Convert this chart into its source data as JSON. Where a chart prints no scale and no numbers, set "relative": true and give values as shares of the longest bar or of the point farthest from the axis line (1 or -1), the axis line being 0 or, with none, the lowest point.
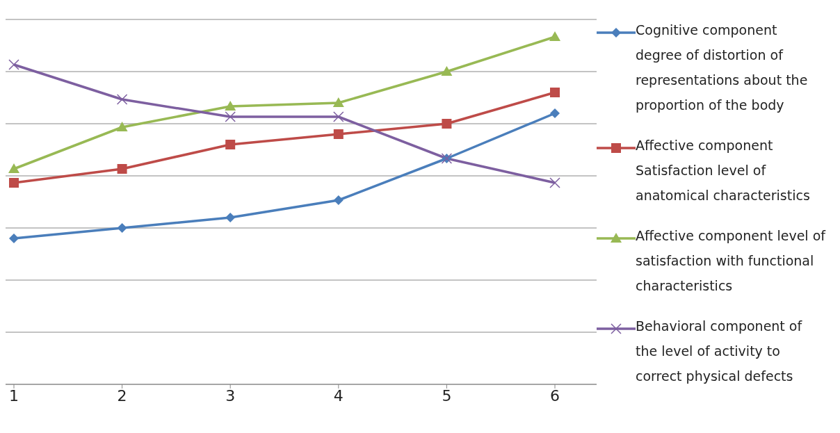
{
  "chart_data": {
    "type": "line",
    "relative": true,
    "categories": [
      "1",
      "2",
      "3",
      "4",
      "5",
      "6"
    ],
    "series": [
      {
        "name": "Cognitive component degree of distortion of representations about the proportion of the body",
        "color": "#4a7ebb",
        "marker": "diamond",
        "values": [
          0.42,
          0.45,
          0.48,
          0.53,
          0.65,
          0.78
        ]
      },
      {
        "name": "Affective component Satisfaction level of anatomical characteristics",
        "color": "#be4b48",
        "marker": "square",
        "values": [
          0.58,
          0.62,
          0.69,
          0.72,
          0.75,
          0.84
        ]
      },
      {
        "name": "Affective component level of satisfaction with functional characteristics",
        "color": "#98b954",
        "marker": "triangle",
        "values": [
          0.62,
          0.74,
          0.8,
          0.81,
          0.9,
          1
        ]
      },
      {
        "name": "Behavioral component of the level of activity to correct physical defects",
        "color": "#7d5fa0",
        "marker": "cross",
        "values": [
          0.92,
          0.82,
          0.77,
          0.77,
          0.65,
          0.58
        ]
      }
    ],
    "grid": "y",
    "legend": "right",
    "line_style": "solid"
  }
}
